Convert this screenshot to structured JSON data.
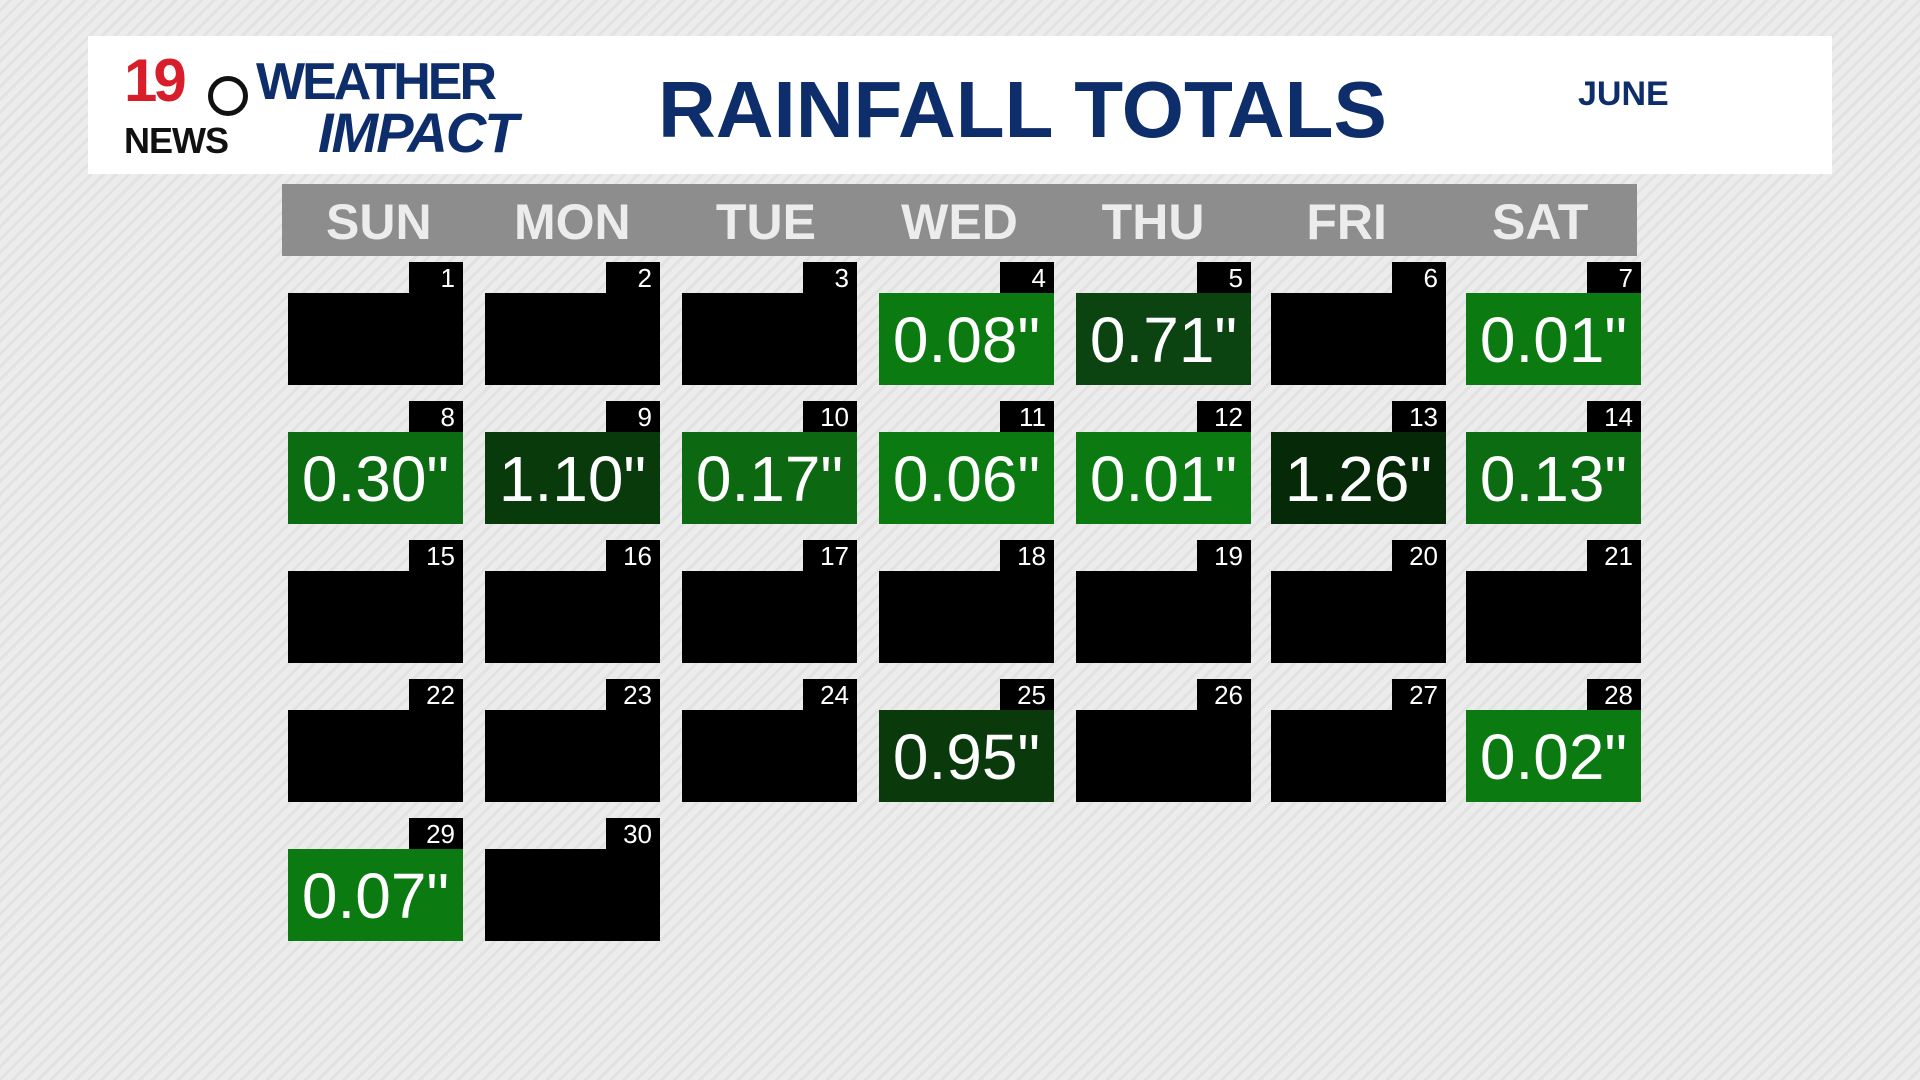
{
  "header": {
    "logo": {
      "number": "19",
      "network": "NEWS",
      "brand_top": "WEATHER",
      "brand_bottom": "IMPACT"
    },
    "title": "RAINFALL TOTALS",
    "month": "JUNE"
  },
  "calendar": {
    "weekdays": [
      "SUN",
      "MON",
      "TUE",
      "WED",
      "THU",
      "FRI",
      "SAT"
    ],
    "days": [
      {
        "day": 1,
        "color": "#000000"
      },
      {
        "day": 2,
        "color": "#000000"
      },
      {
        "day": 3,
        "color": "#000000"
      },
      {
        "day": 4,
        "rainfall": "0.08\"",
        "color": "#0b7a10"
      },
      {
        "day": 5,
        "rainfall": "0.71\"",
        "color": "#0b4410"
      },
      {
        "day": 6,
        "color": "#000000"
      },
      {
        "day": 7,
        "rainfall": "0.01\"",
        "color": "#0b7a10"
      },
      {
        "day": 8,
        "rainfall": "0.30\"",
        "color": "#0b6c11"
      },
      {
        "day": 9,
        "rainfall": "1.10\"",
        "color": "#083a0b"
      },
      {
        "day": 10,
        "rainfall": "0.17\"",
        "color": "#0c6811"
      },
      {
        "day": 11,
        "rainfall": "0.06\"",
        "color": "#0b7a10"
      },
      {
        "day": 12,
        "rainfall": "0.01\"",
        "color": "#0b7a10"
      },
      {
        "day": 13,
        "rainfall": "1.26\"",
        "color": "#062a08"
      },
      {
        "day": 14,
        "rainfall": "0.13\"",
        "color": "#0c6c11"
      },
      {
        "day": 15,
        "color": "#000000"
      },
      {
        "day": 16,
        "color": "#000000"
      },
      {
        "day": 17,
        "color": "#000000"
      },
      {
        "day": 18,
        "color": "#000000"
      },
      {
        "day": 19,
        "color": "#000000"
      },
      {
        "day": 20,
        "color": "#000000"
      },
      {
        "day": 21,
        "color": "#000000"
      },
      {
        "day": 22,
        "color": "#000000"
      },
      {
        "day": 23,
        "color": "#000000"
      },
      {
        "day": 24,
        "color": "#000000"
      },
      {
        "day": 25,
        "rainfall": "0.95\"",
        "color": "#0a3a0c"
      },
      {
        "day": 26,
        "color": "#000000"
      },
      {
        "day": 27,
        "color": "#000000"
      },
      {
        "day": 28,
        "rainfall": "0.02\"",
        "color": "#0b7a10"
      },
      {
        "day": 29,
        "rainfall": "0.07\"",
        "color": "#0b7a10"
      },
      {
        "day": 30,
        "color": "#000000"
      }
    ]
  }
}
